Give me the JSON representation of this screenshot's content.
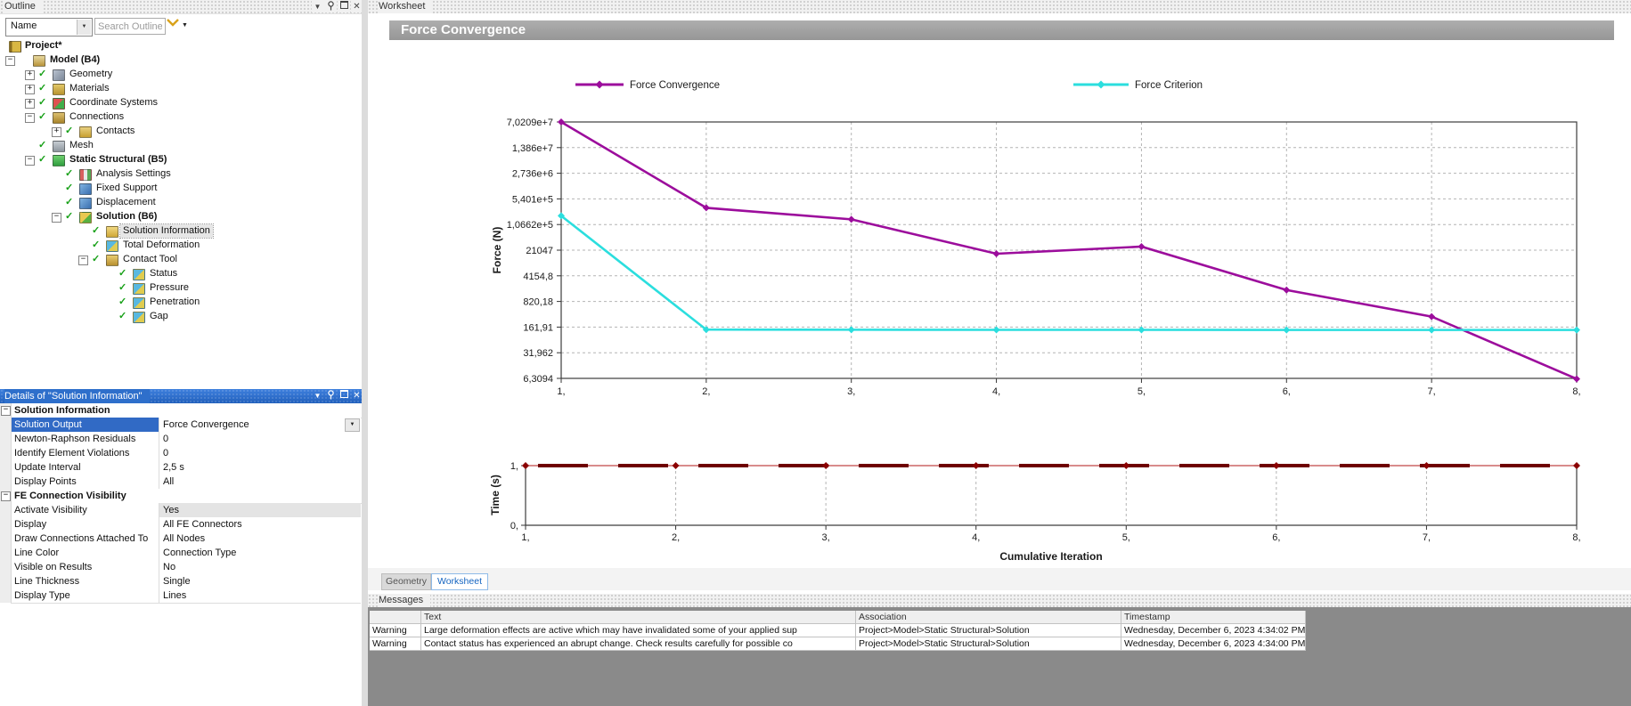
{
  "outline_panel": {
    "title": "Outline",
    "filter_label": "Name",
    "search_placeholder": "Search Outline",
    "tree": [
      {
        "label": "Project*",
        "depth": 0,
        "bold": true,
        "icon": "project-icon",
        "iclass": "ic-project"
      },
      {
        "label": "Model (B4)",
        "depth": 1,
        "bold": true,
        "icon": "model-icon",
        "iclass": "ic-model",
        "expand": "minus"
      },
      {
        "label": "Geometry",
        "depth": 2,
        "icon": "geometry-icon",
        "iclass": "ic-geometry",
        "expand": "plus",
        "check": true
      },
      {
        "label": "Materials",
        "depth": 2,
        "icon": "materials-icon",
        "iclass": "ic-materials",
        "expand": "plus",
        "check": true
      },
      {
        "label": "Coordinate Systems",
        "depth": 2,
        "icon": "coordinate-systems-icon",
        "iclass": "ic-coordinate",
        "expand": "plus",
        "check": true
      },
      {
        "label": "Connections",
        "depth": 2,
        "icon": "connections-icon",
        "iclass": "ic-connections",
        "expand": "minus",
        "check": true
      },
      {
        "label": "Contacts",
        "depth": 3,
        "icon": "contacts-icon",
        "iclass": "ic-contacts",
        "expand": "plus",
        "check": true
      },
      {
        "label": "Mesh",
        "depth": 2,
        "icon": "mesh-icon",
        "iclass": "ic-mesh",
        "check": true
      },
      {
        "label": "Static Structural (B5)",
        "depth": 2,
        "bold": true,
        "icon": "static-structural-icon",
        "iclass": "ic-static",
        "expand": "minus",
        "check": true
      },
      {
        "label": "Analysis Settings",
        "depth": 3,
        "icon": "analysis-settings-icon",
        "iclass": "ic-analysis",
        "check": true
      },
      {
        "label": "Fixed Support",
        "depth": 3,
        "icon": "fixed-support-icon",
        "iclass": "ic-support",
        "check": true
      },
      {
        "label": "Displacement",
        "depth": 3,
        "icon": "displacement-icon",
        "iclass": "ic-support",
        "check": true
      },
      {
        "label": "Solution (B6)",
        "depth": 3,
        "bold": true,
        "icon": "solution-icon",
        "iclass": "ic-solution",
        "expand": "minus",
        "check": true
      },
      {
        "label": "Solution Information",
        "depth": 4,
        "icon": "solution-information-icon",
        "iclass": "ic-solinfo",
        "check": true,
        "selected": true
      },
      {
        "label": "Total Deformation",
        "depth": 4,
        "icon": "total-deformation-icon",
        "iclass": "ic-result",
        "check": true
      },
      {
        "label": "Contact Tool",
        "depth": 4,
        "icon": "contact-tool-icon",
        "iclass": "ic-ctool",
        "expand": "minus",
        "check": true
      },
      {
        "label": "Status",
        "depth": 5,
        "icon": "status-icon",
        "iclass": "ic-result",
        "check": true
      },
      {
        "label": "Pressure",
        "depth": 5,
        "icon": "pressure-icon",
        "iclass": "ic-result",
        "check": true
      },
      {
        "label": "Penetration",
        "depth": 5,
        "icon": "penetration-icon",
        "iclass": "ic-result",
        "check": true
      },
      {
        "label": "Gap",
        "depth": 5,
        "icon": "gap-icon",
        "iclass": "ic-result",
        "check": true
      }
    ]
  },
  "details_panel": {
    "title": "Details of \"Solution Information\"",
    "groups": [
      {
        "header": "Solution Information",
        "rows": [
          {
            "label": "Solution Output",
            "value": "Force Convergence",
            "selected": true,
            "dropdown": true
          },
          {
            "label": "Newton-Raphson Residuals",
            "value": "0"
          },
          {
            "label": "Identify Element Violations",
            "value": "0"
          },
          {
            "label": "Update Interval",
            "value": "2,5 s"
          },
          {
            "label": "Display Points",
            "value": "All"
          }
        ]
      },
      {
        "header": "FE Connection Visibility",
        "rows": [
          {
            "label": "Activate Visibility",
            "value": "Yes",
            "muted": true
          },
          {
            "label": "Display",
            "value": "All FE Connectors"
          },
          {
            "label": "Draw Connections Attached To",
            "value": "All Nodes"
          },
          {
            "label": "Line Color",
            "value": "Connection Type"
          },
          {
            "label": "Visible on Results",
            "value": "No"
          },
          {
            "label": "Line Thickness",
            "value": "Single"
          },
          {
            "label": "Display Type",
            "value": "Lines"
          }
        ]
      }
    ]
  },
  "worksheet": {
    "panel_title": "Worksheet",
    "chart_title": "Force Convergence",
    "tabs": [
      {
        "label": "Geometry",
        "active": false
      },
      {
        "label": "Worksheet",
        "active": true
      }
    ]
  },
  "messages": {
    "title": "Messages",
    "columns": [
      "",
      "Text",
      "Association",
      "Timestamp"
    ],
    "rows": [
      {
        "severity": "Warning",
        "text": "Large deformation effects are active which may have invalidated some of your applied sup",
        "association": "Project>Model>Static Structural>Solution",
        "timestamp": "Wednesday, December 6, 2023 4:34:02 PM"
      },
      {
        "severity": "Warning",
        "text": "Contact status has experienced an abrupt change.  Check results carefully for possible co",
        "association": "Project>Model>Static Structural>Solution",
        "timestamp": "Wednesday, December 6, 2023 4:34:00 PM"
      }
    ]
  },
  "chart_data": [
    {
      "type": "line",
      "ylabel": "Force (N)",
      "y_scale": "log",
      "ylim": [
        70209000,
        6.3094
      ],
      "y_tick_labels": [
        "7,0209e+7",
        "1,386e+7",
        "2,736e+6",
        "5,401e+5",
        "1,0662e+5",
        "21047",
        "4154,8",
        "820,18",
        "161,91",
        "31,962",
        "6,3094"
      ],
      "x": [
        1,
        2,
        3,
        4,
        5,
        6,
        7,
        8
      ],
      "x_tick_labels": [
        "1,",
        "2,",
        "3,",
        "4,",
        "5,",
        "6,",
        "7,",
        "8,"
      ],
      "grid": true,
      "legend_position": "top",
      "series": [
        {
          "name": "Force Convergence",
          "color": "#9C0D9C",
          "values": [
            70209000,
            307000,
            148000,
            16800,
            26400,
            1690,
            315,
            6.1
          ]
        },
        {
          "name": "Force Criterion",
          "color": "#2BDEDE",
          "values": [
            185000,
            138,
            137,
            136,
            136,
            135,
            135,
            135
          ]
        }
      ]
    },
    {
      "type": "line",
      "ylabel": "Time (s)",
      "xlabel": "Cumulative Iteration",
      "ylim": [
        0,
        1
      ],
      "y_tick_labels": [
        "1,",
        "0,"
      ],
      "x": [
        1,
        2,
        3,
        4,
        5,
        6,
        7,
        8
      ],
      "x_tick_labels": [
        "1,",
        "2,",
        "3,",
        "4,",
        "5,",
        "6,",
        "7,",
        "8,"
      ],
      "grid": true,
      "series": [
        {
          "name": "Time",
          "color": "#8B0000",
          "line_color": "#C24848",
          "dash_color": "#6E0000",
          "values": [
            1,
            1,
            1,
            1,
            1,
            1,
            1,
            1
          ]
        }
      ]
    }
  ]
}
